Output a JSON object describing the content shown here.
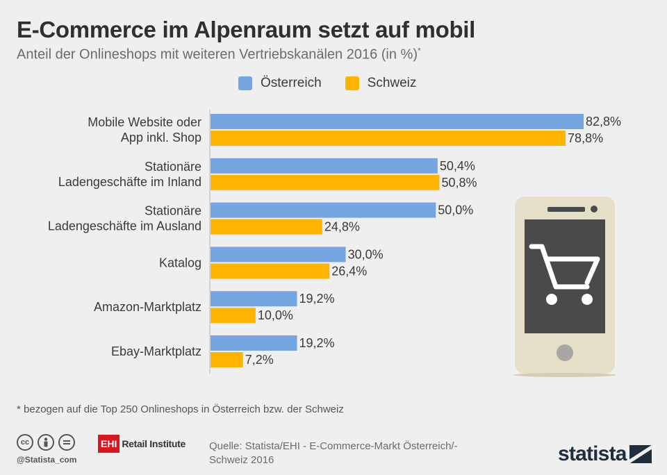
{
  "title": "E-Commerce im Alpenraum setzt auf mobil",
  "subtitle": "Anteil der Onlineshops mit weiteren Vertriebskanälen 2016 (in %)",
  "subtitle_mark": "*",
  "chart_data": {
    "type": "bar",
    "orientation": "horizontal",
    "title": "E-Commerce im Alpenraum setzt auf mobil",
    "subtitle": "Anteil der Onlineshops mit weiteren Vertriebskanälen 2016 (in %)",
    "categories": [
      [
        "Mobile Website oder",
        "App inkl. Shop"
      ],
      [
        "Stationäre",
        "Ladengeschäfte im Inland"
      ],
      [
        "Stationäre",
        "Ladengeschäfte im Ausland"
      ],
      [
        "Katalog"
      ],
      [
        "Amazon-Marktplatz"
      ],
      [
        "Ebay-Marktplatz"
      ]
    ],
    "series": [
      {
        "name": "Österreich",
        "color": "#76a6e0",
        "values": [
          82.8,
          50.4,
          50.0,
          30.0,
          19.2,
          19.2
        ],
        "labels": [
          "82,8%",
          "50,4%",
          "50,0%",
          "30,0%",
          "19,2%",
          "19,2%"
        ]
      },
      {
        "name": "Schweiz",
        "color": "#ffb400",
        "values": [
          78.8,
          50.8,
          24.8,
          26.4,
          10.0,
          7.2
        ],
        "labels": [
          "78,8%",
          "50,8%",
          "24,8%",
          "26,4%",
          "10,0%",
          "7,2%"
        ]
      }
    ],
    "xlim": [
      0,
      100
    ],
    "grid": false,
    "legend_position": "top"
  },
  "footnote": "* bezogen auf die Top 250 Onlineshops in Österreich bzw. der Schweiz",
  "handle": "@Statista_com",
  "partner": {
    "badge": "EHI",
    "name": "Retail Institute"
  },
  "source_line1": "Quelle: Statista/EHI - E-Commerce-Markt Österreich/-",
  "source_line2": "Schweiz 2016",
  "brand": "statista",
  "icons": [
    "creative-commons-icon",
    "attribution-icon",
    "no-derivatives-icon",
    "smartphone-cart-icon",
    "statista-flag-icon"
  ]
}
